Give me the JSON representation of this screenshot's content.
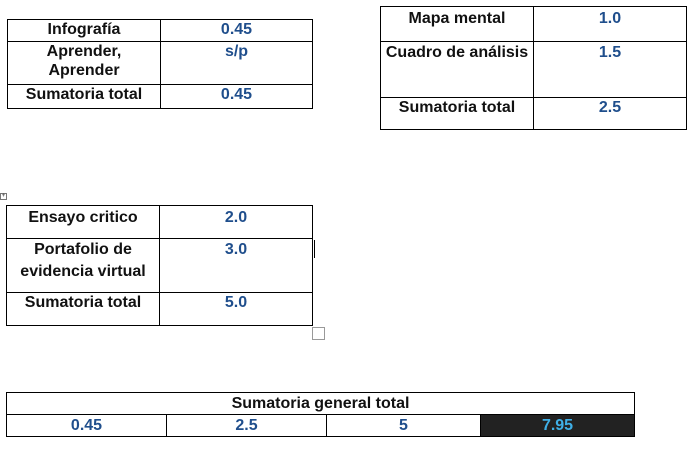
{
  "table1": {
    "rows": [
      {
        "label": "Infografía",
        "value": "0.45"
      },
      {
        "label": "Aprender, Aprender",
        "value": "s/p"
      },
      {
        "label": "Sumatoria total",
        "value": "0.45"
      }
    ]
  },
  "table2": {
    "rows": [
      {
        "label": "Mapa mental",
        "value": "1.0"
      },
      {
        "label": "Cuadro de análisis",
        "value": "1.5"
      },
      {
        "label": "Sumatoria total",
        "value": "2.5"
      }
    ]
  },
  "table3": {
    "rows": [
      {
        "label": "Ensayo critico",
        "value": "2.0"
      },
      {
        "label": "Portafolio de evidencia virtual",
        "value": "3.0"
      },
      {
        "label": "Sumatoria total",
        "value": "5.0"
      }
    ]
  },
  "summary": {
    "header": "Sumatoria general total",
    "values": [
      "0.45",
      "2.5",
      "5"
    ],
    "total": "7.95"
  },
  "colors": {
    "value_text": "#1f4e8c",
    "total_background": "#222222",
    "total_text": "#3fb0e8"
  }
}
